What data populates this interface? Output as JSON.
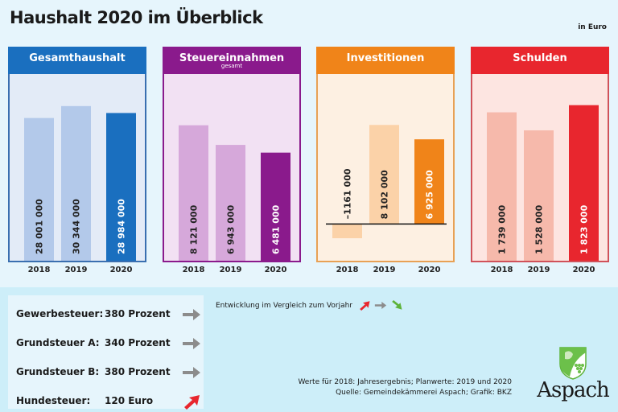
{
  "header": {
    "title": "Haushalt 2020 im Überblick",
    "unit": "in Euro"
  },
  "chart_data": [
    {
      "type": "bar",
      "title": "Gesamthaushalt",
      "subtitle": "",
      "categories": [
        "2018",
        "2019",
        "2020"
      ],
      "values": [
        28001000,
        30344000,
        28984000
      ],
      "labels": [
        "28 001 000",
        "30 344 000",
        "28 984 000"
      ],
      "color_main": "#1a6fbf",
      "color_light": "#b3c9ea",
      "panel_bg": "#e3ebf7",
      "border": "#3a6fb0",
      "ylim": [
        0,
        36000000
      ]
    },
    {
      "type": "bar",
      "title": "Steuereinnahmen",
      "subtitle": "gesamt",
      "categories": [
        "2018",
        "2019",
        "2020"
      ],
      "values": [
        8121000,
        6943000,
        6481000
      ],
      "labels": [
        "8 121 000",
        "6 943 000",
        "6 481 000"
      ],
      "color_main": "#8a1a8c",
      "color_light": "#d6a8da",
      "panel_bg": "#f2e1f3",
      "border": "#8a1a8c",
      "ylim": [
        0,
        11000000
      ]
    },
    {
      "type": "bar",
      "title": "Investitionen",
      "subtitle": "",
      "categories": [
        "2018",
        "2019",
        "2020"
      ],
      "values": [
        -1161000,
        8102000,
        6925000
      ],
      "labels": [
        "–1161 000",
        "8 102 000",
        "6 925 000"
      ],
      "color_main": "#f08419",
      "color_light": "#fbd2a8",
      "panel_bg": "#fdf0e2",
      "border": "#e8a155",
      "ylim": [
        -3000000,
        12000000
      ]
    },
    {
      "type": "bar",
      "title": "Schulden",
      "subtitle": "",
      "categories": [
        "2018",
        "2019",
        "2020"
      ],
      "values": [
        1739000,
        1528000,
        1823000
      ],
      "labels": [
        "1 739 000",
        "1 528 000",
        "1 823 000"
      ],
      "color_main": "#e8262e",
      "color_light": "#f6b9ab",
      "panel_bg": "#fde5e1",
      "border": "#d0525a",
      "ylim": [
        0,
        2150000
      ]
    }
  ],
  "taxes": [
    {
      "label": "Gewerbesteuer:",
      "value": "380 Prozent",
      "trend": "same"
    },
    {
      "label": "Grundsteuer A:",
      "value": "340 Prozent",
      "trend": "same"
    },
    {
      "label": "Grundsteuer B:",
      "value": "380 Prozent",
      "trend": "same"
    },
    {
      "label": "Hundesteuer:",
      "value": "120 Euro",
      "trend": "up"
    }
  ],
  "legend": {
    "text": "Entwicklung im Vergleich zum Vorjahr",
    "items": [
      "up",
      "same",
      "down"
    ]
  },
  "notes": {
    "line1": "Werte für 2018: Jahresergebnis; Planwerte: 2019 und 2020",
    "line2": "Quelle:  Gemeindekämmerei Aspach; Grafik: BKZ"
  },
  "logo": {
    "name": "Aspach"
  },
  "colors": {
    "up": "#e8262e",
    "same": "#8c8c8c",
    "down": "#5db33a"
  }
}
